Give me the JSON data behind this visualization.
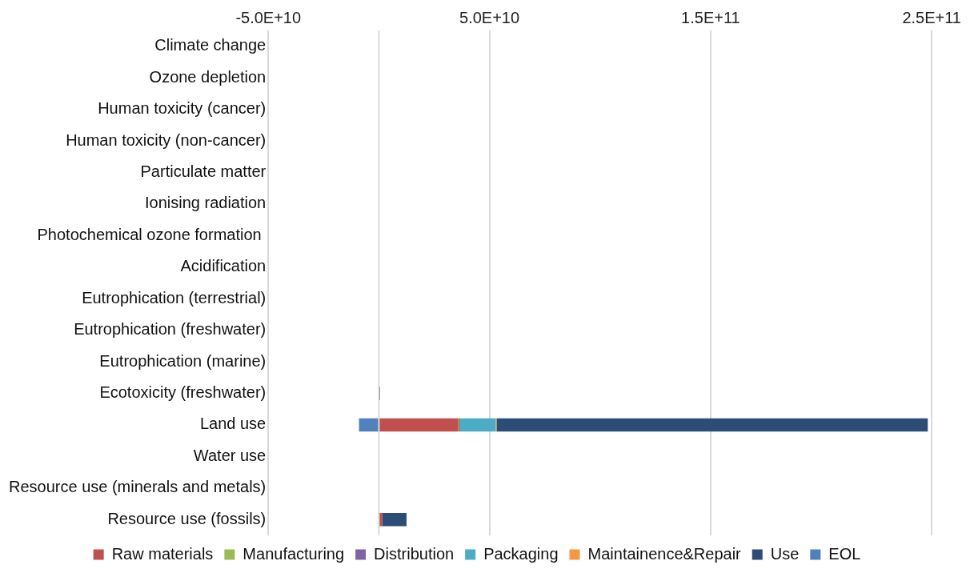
{
  "chart_data": {
    "type": "bar",
    "orientation": "horizontal",
    "stacked": true,
    "categories": [
      "Climate change",
      "Ozone depletion",
      "Human toxicity (cancer)",
      "Human toxicity (non-cancer)",
      "Particulate matter",
      "Ionising radiation",
      "Photochemical ozone formation ",
      "Acidification",
      "Eutrophication (terrestrial)",
      "Eutrophication (freshwater)",
      "Eutrophication (marine)",
      "Ecotoxicity (freshwater)",
      "Land use",
      "Water use",
      "Resource use (minerals and metals)",
      "Resource use (fossils)"
    ],
    "series": [
      {
        "name": "Raw materials",
        "color": "#c0504d",
        "values": [
          null,
          null,
          null,
          null,
          null,
          null,
          null,
          null,
          null,
          null,
          null,
          null,
          36000000000,
          null,
          null,
          1500000000
        ]
      },
      {
        "name": "Manufacturing",
        "color": "#9bbb59",
        "values": [
          null,
          null,
          null,
          null,
          null,
          null,
          null,
          null,
          null,
          null,
          null,
          null,
          400000000,
          null,
          null,
          null
        ]
      },
      {
        "name": "Distribution",
        "color": "#8064a2",
        "values": [
          null,
          null,
          null,
          null,
          null,
          null,
          null,
          null,
          null,
          null,
          null,
          null,
          400000000,
          null,
          null,
          null
        ]
      },
      {
        "name": "Packaging",
        "color": "#4bacc6",
        "values": [
          null,
          null,
          null,
          null,
          null,
          null,
          null,
          null,
          null,
          null,
          null,
          null,
          16000000000,
          null,
          null,
          null
        ]
      },
      {
        "name": "Maintainence&Repair",
        "color": "#f79646",
        "values": [
          null,
          null,
          null,
          null,
          null,
          null,
          null,
          null,
          null,
          null,
          null,
          null,
          400000000,
          null,
          null,
          null
        ]
      },
      {
        "name": "Use",
        "color": "#2c4d75",
        "values": [
          null,
          null,
          null,
          null,
          null,
          null,
          null,
          null,
          null,
          null,
          null,
          500000000,
          195000000000,
          null,
          null,
          11000000000
        ]
      },
      {
        "name": "EOL",
        "color": "#4f81bd",
        "values": [
          null,
          null,
          null,
          null,
          null,
          null,
          null,
          null,
          null,
          null,
          null,
          null,
          -9000000000,
          null,
          null,
          null
        ]
      }
    ],
    "xlim": [
      -50000000000,
      250000000000
    ],
    "xticks": [
      {
        "value": -50000000000,
        "label": "-5.0E+10"
      },
      {
        "value": 50000000000,
        "label": "5.0E+10"
      },
      {
        "value": 150000000000,
        "label": "1.5E+11"
      },
      {
        "value": 250000000000,
        "label": "2.5E+11"
      }
    ],
    "grid": "x",
    "legend": "bottom"
  }
}
